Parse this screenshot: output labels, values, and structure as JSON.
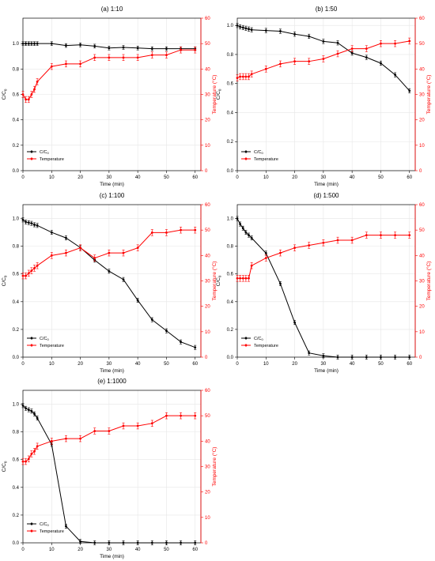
{
  "chart_data": [
    {
      "type": "line",
      "title": "(a) 1:10",
      "xlabel": "Time (min)",
      "ylabel": "C/C",
      "ylabel_sub": "0",
      "y2label": "Temperature (°C)",
      "xlim": [
        0,
        62
      ],
      "ylim": [
        0,
        1.2
      ],
      "y2lim": [
        0,
        60
      ],
      "xticks": [
        0,
        10,
        20,
        30,
        40,
        50,
        60
      ],
      "yticks": [
        0.0,
        0.2,
        0.4,
        0.6,
        0.8,
        1.0
      ],
      "y2ticks": [
        0,
        10,
        20,
        30,
        40,
        50,
        60
      ],
      "grid": true,
      "legend": "bottom-left",
      "series": [
        {
          "name": "C/C",
          "name_sub": "0",
          "axis": "left",
          "color": "#000000",
          "x": [
            0,
            1,
            2,
            3,
            4,
            5,
            10,
            15,
            20,
            25,
            30,
            35,
            40,
            45,
            50,
            55,
            60
          ],
          "y": [
            1.0,
            1.0,
            1.0,
            1.0,
            1.0,
            1.0,
            1.0,
            0.985,
            0.99,
            0.98,
            0.965,
            0.97,
            0.965,
            0.96,
            0.96,
            0.96,
            0.96
          ]
        },
        {
          "name": "Temperature",
          "axis": "right",
          "color": "#ff0000",
          "x": [
            0,
            1,
            2,
            3,
            4,
            5,
            10,
            15,
            20,
            25,
            30,
            35,
            40,
            45,
            50,
            55,
            60
          ],
          "y": [
            30,
            28,
            28,
            30,
            32,
            35,
            41,
            42,
            42,
            44.5,
            44.5,
            44.5,
            44.5,
            45.5,
            45.5,
            47.5,
            47.5
          ]
        }
      ]
    },
    {
      "type": "line",
      "title": "(b) 1:50",
      "xlabel": "Time (min)",
      "ylabel": "C/C",
      "ylabel_sub": "0",
      "y2label": "Temperature (°C)",
      "xlim": [
        0,
        62
      ],
      "ylim": [
        0,
        1.05
      ],
      "y2lim": [
        0,
        60
      ],
      "xticks": [
        0,
        10,
        20,
        30,
        40,
        50,
        60
      ],
      "yticks": [
        0.0,
        0.2,
        0.4,
        0.6,
        0.8,
        1.0
      ],
      "y2ticks": [
        0,
        10,
        20,
        30,
        40,
        50,
        60
      ],
      "grid": true,
      "legend": "bottom-left",
      "series": [
        {
          "name": "C/C",
          "name_sub": "0",
          "axis": "left",
          "color": "#000000",
          "x": [
            0,
            1,
            2,
            3,
            4,
            5,
            10,
            15,
            20,
            25,
            30,
            35,
            40,
            45,
            50,
            55,
            60
          ],
          "y": [
            1.0,
            0.99,
            0.985,
            0.98,
            0.975,
            0.97,
            0.965,
            0.96,
            0.94,
            0.925,
            0.89,
            0.88,
            0.81,
            0.78,
            0.74,
            0.66,
            0.55
          ]
        },
        {
          "name": "Temperature",
          "axis": "right",
          "color": "#ff0000",
          "x": [
            0,
            1,
            2,
            3,
            4,
            5,
            10,
            15,
            20,
            25,
            30,
            35,
            40,
            45,
            50,
            55,
            60
          ],
          "y": [
            36.5,
            37,
            37,
            37,
            37,
            38,
            40,
            42,
            43,
            43,
            44,
            46,
            48,
            48,
            50,
            50,
            51
          ]
        }
      ]
    },
    {
      "type": "line",
      "title": "(c) 1:100",
      "xlabel": "Time (min)",
      "ylabel": "C/C",
      "ylabel_sub": "0",
      "y2label": "Temperature (°C)",
      "xlim": [
        0,
        62
      ],
      "ylim": [
        0,
        1.1
      ],
      "y2lim": [
        0,
        60
      ],
      "xticks": [
        0,
        10,
        20,
        30,
        40,
        50,
        60
      ],
      "yticks": [
        0.0,
        0.2,
        0.4,
        0.6,
        0.8,
        1.0
      ],
      "y2ticks": [
        0,
        10,
        20,
        30,
        40,
        50,
        60
      ],
      "grid": true,
      "legend": "bottom-left",
      "series": [
        {
          "name": "C/C",
          "name_sub": "0",
          "axis": "left",
          "color": "#000000",
          "x": [
            0,
            1,
            2,
            3,
            4,
            5,
            10,
            15,
            20,
            25,
            30,
            35,
            40,
            45,
            50,
            55,
            60
          ],
          "y": [
            0.99,
            0.975,
            0.97,
            0.965,
            0.955,
            0.95,
            0.9,
            0.86,
            0.79,
            0.7,
            0.62,
            0.56,
            0.41,
            0.27,
            0.19,
            0.11,
            0.07
          ]
        },
        {
          "name": "Temperature",
          "axis": "right",
          "color": "#ff0000",
          "x": [
            0,
            1,
            2,
            3,
            4,
            5,
            10,
            15,
            20,
            25,
            30,
            35,
            40,
            45,
            50,
            55,
            60
          ],
          "y": [
            32,
            32,
            33,
            34,
            35,
            36,
            40,
            41,
            43,
            39,
            41,
            41,
            43,
            49,
            49,
            50,
            50
          ]
        }
      ]
    },
    {
      "type": "line",
      "title": "(d) 1:500",
      "xlabel": "Time (min)",
      "ylabel": "C/C",
      "ylabel_sub": "0",
      "y2label": "Temperature (°C)",
      "xlim": [
        0,
        62
      ],
      "ylim": [
        0,
        1.1
      ],
      "y2lim": [
        0,
        60
      ],
      "xticks": [
        0,
        10,
        20,
        30,
        40,
        50,
        60
      ],
      "yticks": [
        0.0,
        0.2,
        0.4,
        0.6,
        0.8,
        1.0
      ],
      "y2ticks": [
        0,
        10,
        20,
        30,
        40,
        50,
        60
      ],
      "grid": true,
      "legend": "bottom-left",
      "series": [
        {
          "name": "C/C",
          "name_sub": "0",
          "axis": "left",
          "color": "#000000",
          "x": [
            0,
            1,
            2,
            3,
            4,
            5,
            10,
            15,
            20,
            25,
            30,
            35,
            40,
            45,
            50,
            55,
            60
          ],
          "y": [
            1.0,
            0.96,
            0.93,
            0.9,
            0.88,
            0.86,
            0.75,
            0.53,
            0.25,
            0.03,
            0.01,
            0.0,
            0.0,
            0.0,
            0.0,
            0.0,
            0.0
          ]
        },
        {
          "name": "Temperature",
          "axis": "right",
          "color": "#ff0000",
          "x": [
            0,
            1,
            2,
            3,
            4,
            5,
            10,
            15,
            20,
            25,
            30,
            35,
            40,
            45,
            50,
            55,
            60
          ],
          "y": [
            31,
            31,
            31,
            31,
            31,
            36,
            39,
            41,
            43,
            44,
            45,
            46,
            46,
            48,
            48,
            48,
            48
          ]
        }
      ]
    },
    {
      "type": "line",
      "title": "(e) 1:1000",
      "xlabel": "Time (min)",
      "ylabel": "C/C",
      "ylabel_sub": "0",
      "y2label": "Temperature (°C)",
      "xlim": [
        0,
        62
      ],
      "ylim": [
        0,
        1.1
      ],
      "y2lim": [
        0,
        60
      ],
      "xticks": [
        0,
        10,
        20,
        30,
        40,
        50,
        60
      ],
      "yticks": [
        0.0,
        0.2,
        0.4,
        0.6,
        0.8,
        1.0
      ],
      "y2ticks": [
        0,
        10,
        20,
        30,
        40,
        50,
        60
      ],
      "grid": true,
      "legend": "bottom-left",
      "series": [
        {
          "name": "C/C",
          "name_sub": "0",
          "axis": "left",
          "color": "#000000",
          "x": [
            0,
            1,
            2,
            3,
            4,
            5,
            10,
            15,
            20,
            25,
            30,
            35,
            40,
            45,
            50,
            55,
            60
          ],
          "y": [
            0.99,
            0.97,
            0.96,
            0.95,
            0.93,
            0.9,
            0.71,
            0.12,
            0.01,
            0.0,
            0.0,
            0.0,
            0.0,
            0.0,
            0.0,
            0.0,
            0.0
          ]
        },
        {
          "name": "Temperature",
          "axis": "right",
          "color": "#ff0000",
          "x": [
            0,
            1,
            2,
            3,
            4,
            5,
            10,
            15,
            20,
            25,
            30,
            35,
            40,
            45,
            50,
            55,
            60
          ],
          "y": [
            32,
            32,
            33,
            35,
            36,
            38,
            40,
            41,
            41,
            44,
            44,
            46,
            46,
            47,
            50,
            50,
            50
          ]
        }
      ]
    }
  ]
}
